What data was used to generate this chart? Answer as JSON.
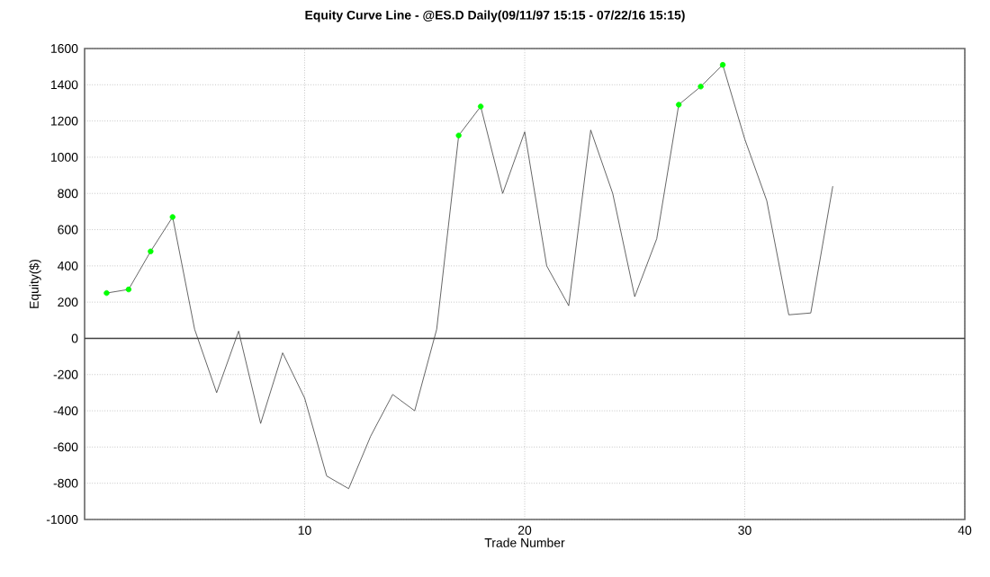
{
  "chart_data": {
    "type": "line",
    "title": "Equity Curve Line - @ES.D Daily(09/11/97 15:15 - 07/22/16 15:15)",
    "xlabel": "Trade Number",
    "ylabel": "Equity($)",
    "x": [
      1,
      2,
      3,
      4,
      5,
      6,
      7,
      8,
      9,
      10,
      11,
      12,
      13,
      14,
      15,
      16,
      17,
      18,
      19,
      20,
      21,
      22,
      23,
      24,
      25,
      26,
      27,
      28,
      29,
      30,
      31,
      32,
      33,
      34
    ],
    "series": [
      {
        "color": "#404040",
        "marker": "none",
        "line_style": "solid",
        "values": [
          250,
          270,
          480,
          670,
          50,
          -300,
          40,
          -470,
          -80,
          -330,
          -760,
          -830,
          -540,
          -310,
          -400,
          50,
          1120,
          1280,
          800,
          1140,
          400,
          180,
          1150,
          800,
          230,
          550,
          1290,
          1390,
          1510,
          1100,
          760,
          130,
          140,
          840
        ]
      },
      {
        "type": "scatter",
        "color": "#00ff00",
        "marker": "circle",
        "values": [
          250,
          270,
          480,
          670,
          null,
          null,
          null,
          null,
          null,
          null,
          null,
          null,
          null,
          null,
          null,
          null,
          1120,
          1280,
          null,
          null,
          null,
          null,
          null,
          null,
          null,
          null,
          1290,
          1390,
          1510,
          null,
          null,
          null,
          null,
          null
        ]
      }
    ],
    "xlim": [
      0,
      40
    ],
    "xticks": [
      10,
      20,
      30,
      40
    ],
    "ylim": [
      -1000,
      1600
    ],
    "yticks": [
      -1000,
      -800,
      -600,
      -400,
      -200,
      0,
      200,
      400,
      600,
      800,
      1000,
      1200,
      1400,
      1600
    ],
    "ref_lines": [
      {
        "axis": "y",
        "value": 0,
        "color": "#404040",
        "line_style": "solid"
      }
    ],
    "grid": true
  }
}
